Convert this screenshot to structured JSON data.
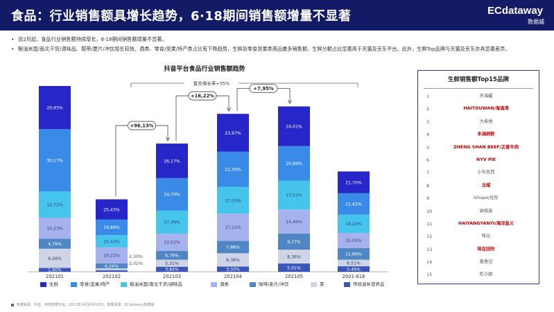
{
  "header": {
    "title": "食品：行业销售额具增长趋势，6·18期间销售额增量不显著",
    "logo_main": "ECdataway",
    "logo_sub": "数据威"
  },
  "bullets": [
    "自2月起，食品行业销售额持续增长，6·18期间销售额增量不显著。",
    "粮油米面/南北干货/调味品、鞋带/夏片/冲饮增长较快。酒类、零食/坚果/特产类占比有下降趋势，生鲜及零食坚果类商品最多销售额，生鲜分额占比显著高于天猫及京东平台。此外，生鲜Top品牌与天猫及京东亦具显著差异。"
  ],
  "chart_data": {
    "type": "bar",
    "stacked": true,
    "title": "抖音平台食品行业销售额趋势",
    "categories": [
      "202101",
      "202102",
      "202103",
      "202104",
      "202105",
      "2021-618"
    ],
    "relative_height": [
      1.0,
      0.39,
      0.69,
      0.85,
      0.89,
      0.54
    ],
    "series": [
      {
        "name": "生鲜",
        "color": "#2626c9",
        "values": [
          20.93,
          25.43,
          26.17,
          23.97,
          24.01,
          21.7
        ]
      },
      {
        "name": "零食/坚果/特产",
        "color": "#3a8be8",
        "values": [
          30.17,
          19.89,
          24.7,
          22.3,
          20.89,
          21.42
        ]
      },
      {
        "name": "粮油米面/南北干货/调味品",
        "color": "#46c5ec",
        "values": [
          12.72,
          15.42,
          17.39,
          17.03,
          17.51,
          18.2
        ]
      },
      {
        "name": "酒类",
        "color": "#a6b2ec",
        "values": [
          10.23,
          20.22,
          13.02,
          17.12,
          14.46,
          15.02
        ]
      },
      {
        "name": "咖啡/麦片/冲饮",
        "color": "#4f86c3",
        "values": [
          4.79,
          6.24,
          6.76,
          7.88,
          9.77,
          11.66
        ]
      },
      {
        "name": "茶",
        "color": "#cfd5e6",
        "values": [
          9.26,
          2.3,
          5.31,
          8.38,
          8.36,
          6.51
        ]
      },
      {
        "name": "传统滋补营养品",
        "color": "#3a56b8",
        "values": [
          1.9,
          2.02,
          3.84,
          3.33,
          5.01,
          5.49
        ]
      }
    ],
    "value_labels": [
      [
        "20,93%",
        "30,17%",
        "12,72%",
        "10,23%",
        "4,79%",
        "9,26%",
        "1,90%"
      ],
      [
        "25,43%",
        "19,89%",
        "15,42%",
        "20,22%",
        "6,24%",
        "2,30%",
        "2,02%"
      ],
      [
        "26,17%",
        "24,70%",
        "17,39%",
        "13,02%",
        "6,76%",
        "5,31%",
        "3,84%"
      ],
      [
        "23,97%",
        "22,30%",
        "17,03%",
        "17,12%",
        "7,88%",
        "8,38%",
        "3,33%"
      ],
      [
        "24,01%",
        "20,89%",
        "17,51%",
        "14,46%",
        "9,77%",
        "8,36%",
        "5,01%"
      ],
      [
        "21,70%",
        "21,42%",
        "18,20%",
        "15,02%",
        "11,66%",
        "6,51%",
        "5,49%"
      ]
    ],
    "growth_annotations": [
      {
        "from": "202102",
        "to": "202103",
        "label": "+96,13%"
      },
      {
        "from": "202103",
        "to": "202104",
        "label": "+16,22%"
      },
      {
        "from": "202104",
        "to": "202105",
        "label": "+7,95%"
      }
    ],
    "cagr_label": "复合增长率+35%",
    "legend_placement": "bottom"
  },
  "top_brands": {
    "title": "生鲜销售额Top15品牌",
    "items": [
      {
        "rank": "1",
        "name": "天海藏",
        "highlight": false
      },
      {
        "rank": "2",
        "name": "HAITOUWAN/海涌湾",
        "highlight": true
      },
      {
        "rank": "3",
        "name": "大希地",
        "highlight": false
      },
      {
        "rank": "4",
        "name": "本涵树鲜",
        "highlight": true
      },
      {
        "rank": "5",
        "name": "ZHENG SHAN BEEF/正善牛肉",
        "highlight": true
      },
      {
        "rank": "6",
        "name": "NYV PIE",
        "highlight": true
      },
      {
        "rank": "7",
        "name": "小牛凯西",
        "highlight": false
      },
      {
        "rank": "8",
        "name": "北域",
        "highlight": true
      },
      {
        "rank": "9",
        "name": "Ishape/优形",
        "highlight": false
      },
      {
        "rank": "10",
        "name": "钟薛高",
        "highlight": false
      },
      {
        "rank": "11",
        "name": "HAIYANGYANYI/海洋盐义",
        "highlight": true
      },
      {
        "rank": "12",
        "name": "味元",
        "highlight": false
      },
      {
        "rank": "13",
        "name": "味在田吹",
        "highlight": true
      },
      {
        "rank": "14",
        "name": "猫食记",
        "highlight": false
      },
      {
        "rank": "15",
        "name": "杠小厨",
        "highlight": false
      }
    ]
  },
  "footnote": "数据来源：抖音、电商数据平台，2021年1月至6月18日，数据来源：ECdataway数据威"
}
